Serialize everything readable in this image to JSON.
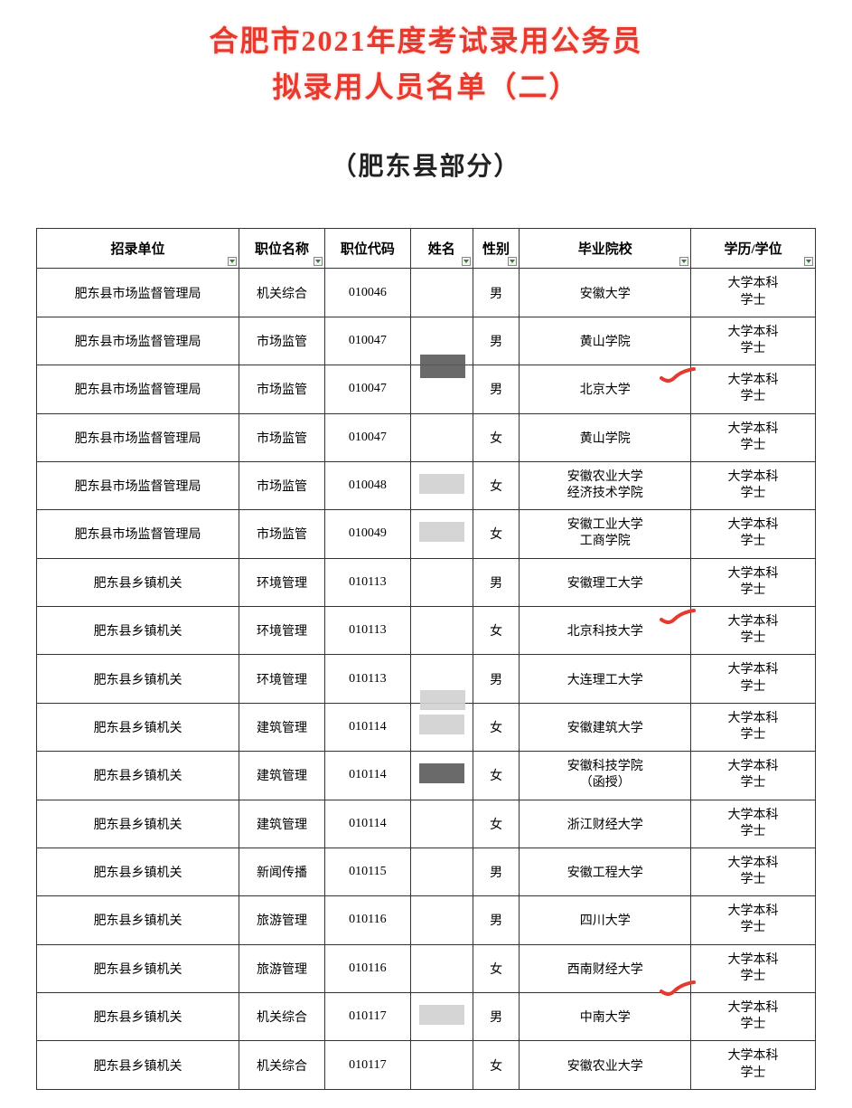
{
  "title": {
    "line1": "合肥市2021年度考试录用公务员",
    "line2": "拟录用人员名单（二）",
    "color": "#e63a2e"
  },
  "subtitle": "（肥东县部分）",
  "table": {
    "columns": [
      {
        "key": "unit",
        "label": "招录单位",
        "width": "26%",
        "filter": true
      },
      {
        "key": "position",
        "label": "职位名称",
        "width": "11%",
        "filter": true
      },
      {
        "key": "code",
        "label": "职位代码",
        "width": "11%",
        "filter": false
      },
      {
        "key": "name",
        "label": "姓名",
        "width": "8%",
        "filter": true
      },
      {
        "key": "gender",
        "label": "性别",
        "width": "6%",
        "filter": true
      },
      {
        "key": "school",
        "label": "毕业院校",
        "width": "22%",
        "filter": true
      },
      {
        "key": "degree",
        "label": "学历/学位",
        "width": "16%",
        "filter": true
      }
    ],
    "degree_text": {
      "line1": "大学本科",
      "line2": "学士"
    },
    "rows": [
      {
        "unit": "肥东县市场监督管理局",
        "position": "机关综合",
        "code": "010046",
        "name_redact": "none",
        "gender": "男",
        "school": "安徽大学",
        "mark": false
      },
      {
        "unit": "肥东县市场监督管理局",
        "position": "市场监管",
        "code": "010047",
        "name_redact": "none",
        "gender": "男",
        "school": "黄山学院",
        "mark": false
      },
      {
        "unit": "肥东县市场监督管理局",
        "position": "市场监管",
        "code": "010047",
        "name_redact": "dark-above",
        "gender": "男",
        "school": "北京大学",
        "mark": true
      },
      {
        "unit": "肥东县市场监督管理局",
        "position": "市场监管",
        "code": "010047",
        "name_redact": "none",
        "gender": "女",
        "school": "黄山学院",
        "mark": false
      },
      {
        "unit": "肥东县市场监督管理局",
        "position": "市场监管",
        "code": "010048",
        "name_redact": "light",
        "gender": "女",
        "school": "安徽农业大学\n经济技术学院",
        "mark": false
      },
      {
        "unit": "肥东县市场监督管理局",
        "position": "市场监管",
        "code": "010049",
        "name_redact": "light",
        "gender": "女",
        "school": "安徽工业大学\n工商学院",
        "mark": false
      },
      {
        "unit": "肥东县乡镇机关",
        "position": "环境管理",
        "code": "010113",
        "name_redact": "none",
        "gender": "男",
        "school": "安徽理工大学",
        "mark": false
      },
      {
        "unit": "肥东县乡镇机关",
        "position": "环境管理",
        "code": "010113",
        "name_redact": "none",
        "gender": "女",
        "school": "北京科技大学",
        "mark": true
      },
      {
        "unit": "肥东县乡镇机关",
        "position": "环境管理",
        "code": "010113",
        "name_redact": "light-below",
        "gender": "男",
        "school": "大连理工大学",
        "mark": false
      },
      {
        "unit": "肥东县乡镇机关",
        "position": "建筑管理",
        "code": "010114",
        "name_redact": "light",
        "gender": "女",
        "school": "安徽建筑大学",
        "mark": false
      },
      {
        "unit": "肥东县乡镇机关",
        "position": "建筑管理",
        "code": "010114",
        "name_redact": "dark",
        "gender": "女",
        "school": "安徽科技学院\n（函授）",
        "mark": false
      },
      {
        "unit": "肥东县乡镇机关",
        "position": "建筑管理",
        "code": "010114",
        "name_redact": "none",
        "gender": "女",
        "school": "浙江财经大学",
        "mark": false
      },
      {
        "unit": "肥东县乡镇机关",
        "position": "新闻传播",
        "code": "010115",
        "name_redact": "none",
        "gender": "男",
        "school": "安徽工程大学",
        "mark": false
      },
      {
        "unit": "肥东县乡镇机关",
        "position": "旅游管理",
        "code": "010116",
        "name_redact": "none",
        "gender": "男",
        "school": "四川大学",
        "mark": false
      },
      {
        "unit": "肥东县乡镇机关",
        "position": "旅游管理",
        "code": "010116",
        "name_redact": "none",
        "gender": "女",
        "school": "西南财经大学",
        "mark": false
      },
      {
        "unit": "肥东县乡镇机关",
        "position": "机关综合",
        "code": "010117",
        "name_redact": "light",
        "gender": "男",
        "school": "中南大学",
        "mark": true,
        "mark_offset": "top"
      },
      {
        "unit": "肥东县乡镇机关",
        "position": "机关综合",
        "code": "010117",
        "name_redact": "none",
        "gender": "女",
        "school": "安徽农业大学",
        "mark": false
      }
    ],
    "mark_color": "#e63a2e",
    "border_color": "#333333",
    "header_fontsize": 15,
    "cell_fontsize": 14
  }
}
